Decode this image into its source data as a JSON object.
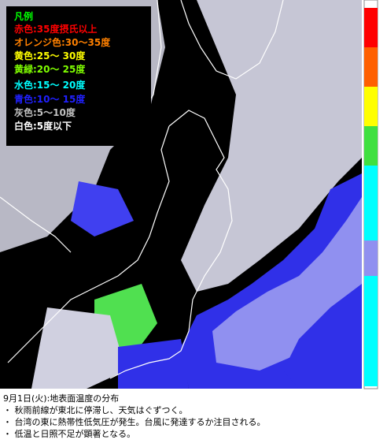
{
  "legend": {
    "title": "凡例",
    "title_color": "#00ff00",
    "items": [
      {
        "label": "赤色:35度摂氏以上",
        "color": "#ff0000"
      },
      {
        "label": "オレンジ色:30〜35度",
        "color": "#ff8000"
      },
      {
        "label": "黄色:25〜 30度",
        "color": "#ffff00"
      },
      {
        "label": "黄緑:20〜 25度",
        "color": "#80ff00"
      },
      {
        "label": "水色:15〜 20度",
        "color": "#00ffff"
      },
      {
        "label": "青色:10〜 15度",
        "color": "#2020ff"
      },
      {
        "label": "灰色:5〜10度",
        "color": "#c0c0c0"
      },
      {
        "label": "白色:5度以下",
        "color": "#ffffff"
      }
    ]
  },
  "caption": {
    "title": "9月1日(火):地表面温度の分布",
    "bullets": [
      "・ 秋雨前線が東北に停滞し、天気はぐずつく。",
      "・ 台湾の東に熱帯性低気圧が発生。台風に発達するか注目される。",
      "・ 低温と日照不足が顕著となる。"
    ]
  }
}
